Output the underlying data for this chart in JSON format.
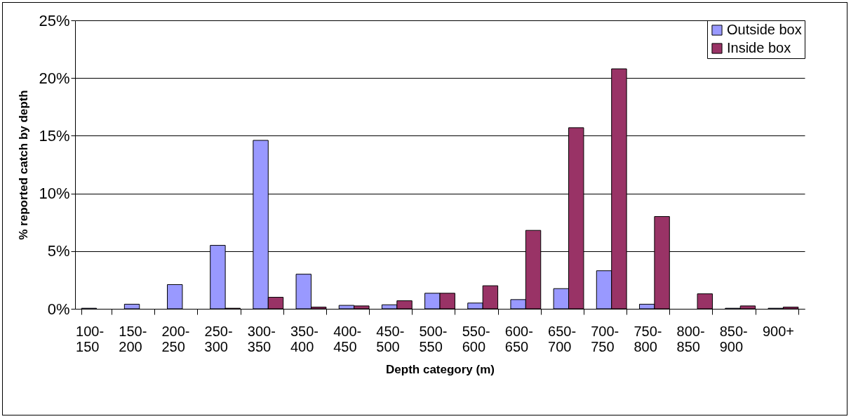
{
  "chart_data": {
    "type": "bar",
    "xlabel": "Depth category (m)",
    "ylabel": "% reported catch by depth",
    "categories": [
      "100-150",
      "150-200",
      "200-250",
      "250-300",
      "300-350",
      "350-400",
      "400-450",
      "450-500",
      "500-550",
      "550-600",
      "600-650",
      "650-700",
      "700-750",
      "750-800",
      "800-850",
      "850-900",
      "900+"
    ],
    "series": [
      {
        "name": "Outside box",
        "color": "#9999ff",
        "values": [
          0.05,
          0.4,
          2.1,
          5.5,
          14.6,
          3.0,
          0.3,
          0.35,
          1.35,
          0.5,
          0.8,
          1.75,
          3.3,
          0.4,
          null,
          0.05,
          0.05
        ]
      },
      {
        "name": "Inside box",
        "color": "#993366",
        "values": [
          null,
          null,
          null,
          0.05,
          1.0,
          0.15,
          0.25,
          0.7,
          1.35,
          2.0,
          6.8,
          15.7,
          20.8,
          8.0,
          1.3,
          0.25,
          0.15
        ]
      }
    ],
    "ylim": [
      0,
      25
    ],
    "yticks": [
      {
        "value": 0,
        "label": "0%"
      },
      {
        "value": 5,
        "label": "5%"
      },
      {
        "value": 10,
        "label": "10%"
      },
      {
        "value": 15,
        "label": "15%"
      },
      {
        "value": 20,
        "label": "20%"
      },
      {
        "value": 25,
        "label": "25%"
      }
    ],
    "grid": "y",
    "legend": "top right"
  }
}
